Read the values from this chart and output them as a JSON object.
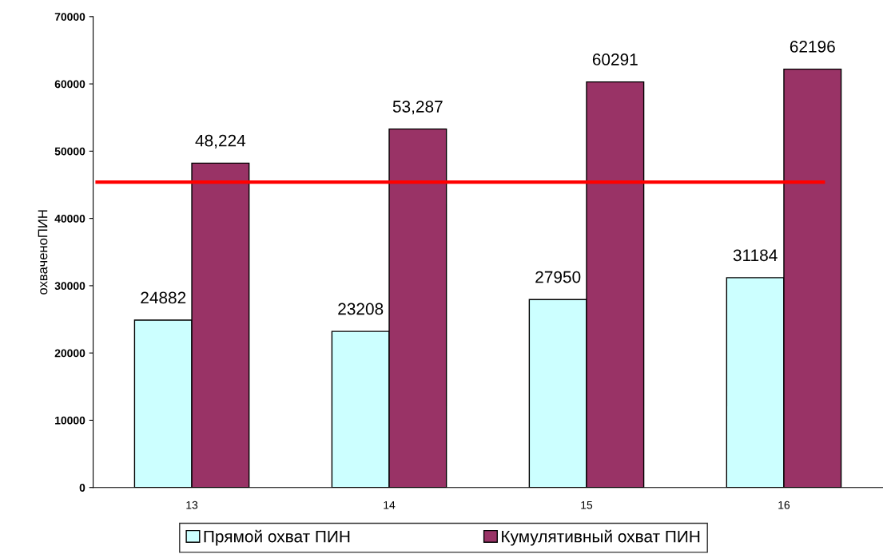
{
  "chart_data": {
    "type": "bar",
    "ylabel": "охваченоПИН",
    "categories": [
      "13",
      "14",
      "15",
      "16"
    ],
    "series": [
      {
        "name": "Прямой охват ПИН",
        "color": "#ccffff",
        "values": [
          24882,
          23208,
          27950,
          31184
        ],
        "value_labels": [
          "24882",
          "23208",
          "27950",
          "31184"
        ]
      },
      {
        "name": "Кумулятивный охват ПИН",
        "color": "#993366",
        "values": [
          48224,
          53287,
          60291,
          62196
        ],
        "value_labels": [
          "48,224",
          "53,287",
          "60291",
          "62196"
        ]
      }
    ],
    "ylim": [
      0,
      70000
    ],
    "yticks": [
      0,
      10000,
      20000,
      30000,
      40000,
      50000,
      60000,
      70000
    ],
    "ref_lines": [
      {
        "axis": "y",
        "value": 45400,
        "color": "#ff0000",
        "line_style": "solid"
      }
    ],
    "grid": false,
    "legend": "bottom"
  }
}
